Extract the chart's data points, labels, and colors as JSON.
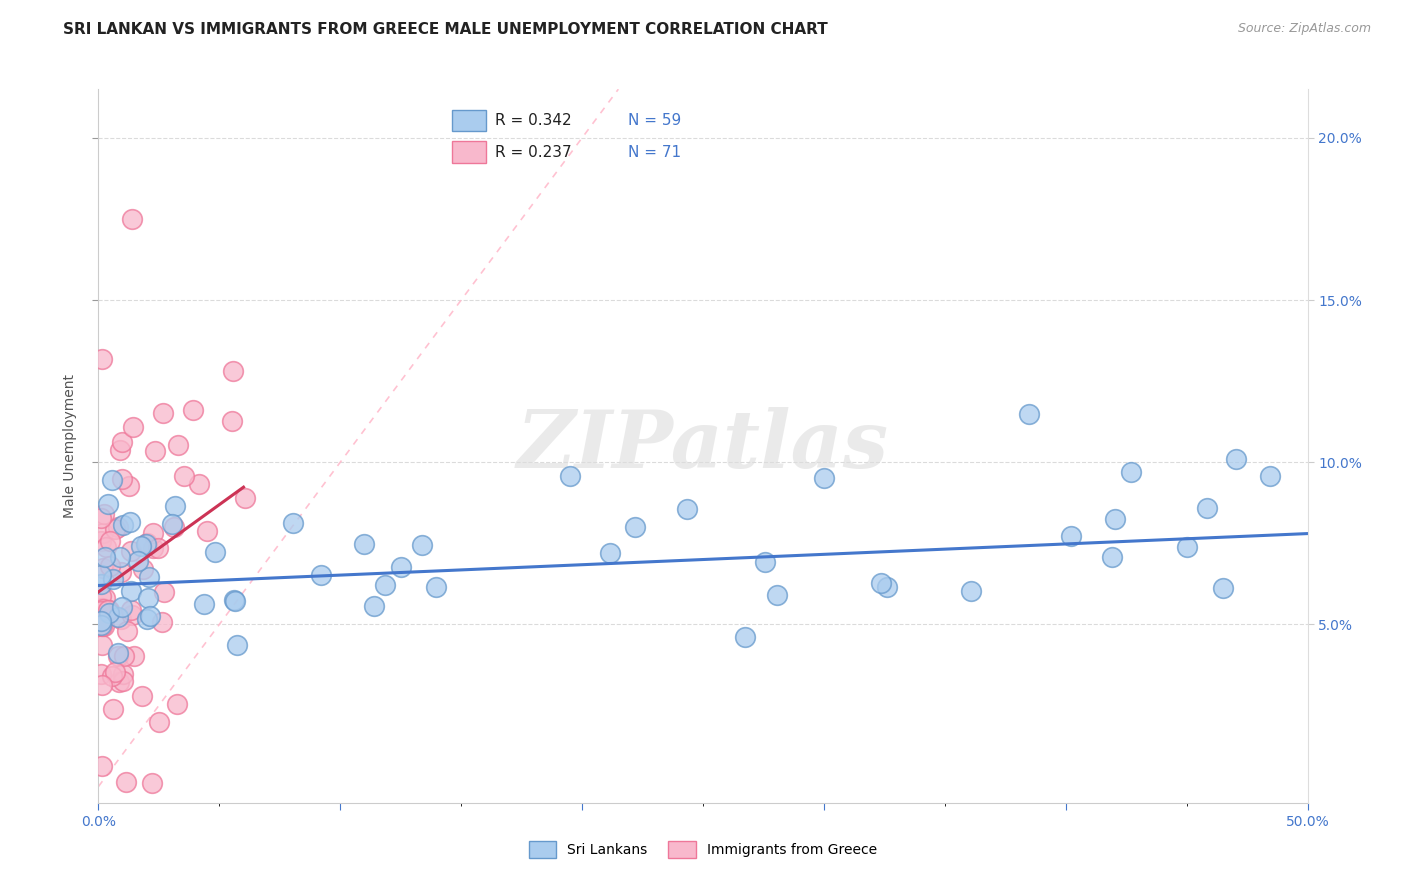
{
  "title": "SRI LANKAN VS IMMIGRANTS FROM GREECE MALE UNEMPLOYMENT CORRELATION CHART",
  "source": "Source: ZipAtlas.com",
  "ylabel": "Male Unemployment",
  "xlim": [
    0,
    0.5
  ],
  "ylim": [
    -0.005,
    0.215
  ],
  "right_yticks": [
    0.05,
    0.1,
    0.15,
    0.2
  ],
  "right_yticklabels": [
    "5.0%",
    "10.0%",
    "15.0%",
    "20.0%"
  ],
  "sri_lankans_label": "Sri Lankans",
  "greece_label": "Immigrants from Greece",
  "sri_lankans_color": "#aaccee",
  "greece_color": "#f8b8cc",
  "sri_lankans_edge": "#6699cc",
  "greece_edge": "#ee7799",
  "regression_sri_color": "#4477cc",
  "regression_greece_color": "#cc3355",
  "diag_color": "#ffbbcc",
  "background_color": "#ffffff",
  "grid_color": "#cccccc",
  "watermark": "ZIPatlas",
  "title_fontsize": 11,
  "axis_fontsize": 10,
  "tick_fontsize": 10,
  "legend_r1": "R = 0.342",
  "legend_n1": "N = 59",
  "legend_r2": "R = 0.237",
  "legend_n2": "N = 71",
  "legend_color_text": "#4477cc"
}
